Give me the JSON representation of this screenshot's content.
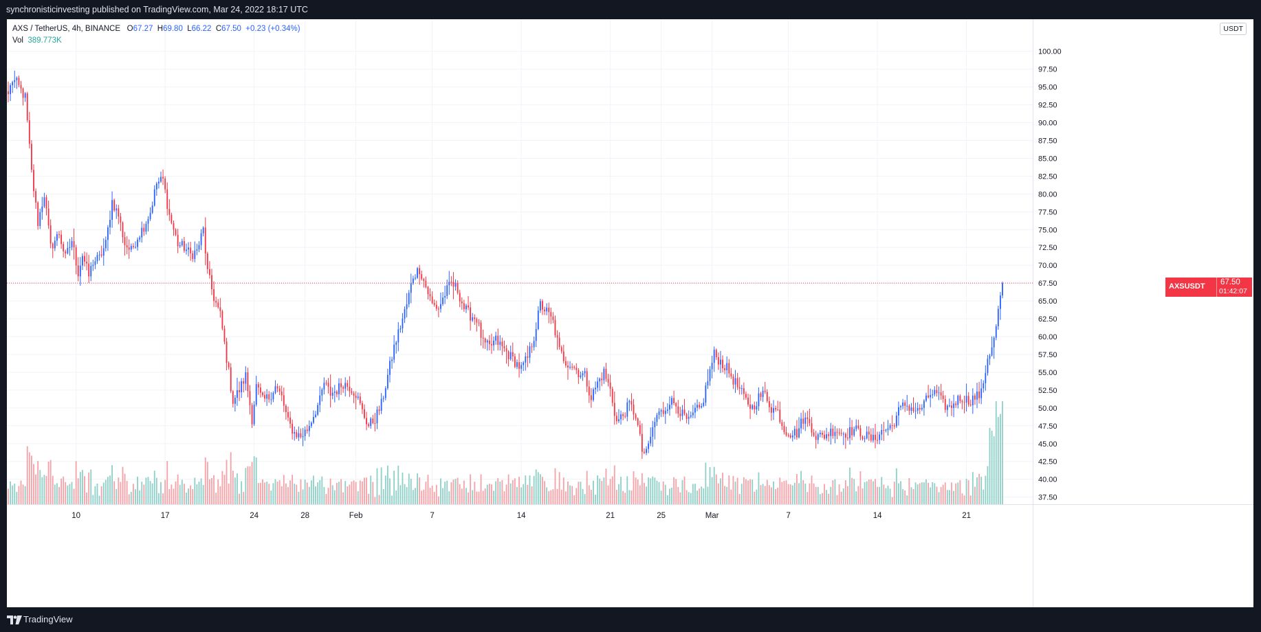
{
  "header": {
    "published_text": "synchronisticinvesting published on TradingView.com, Mar 24, 2022 18:17 UTC"
  },
  "legend": {
    "symbol_line": "AXS / TetherUS, 4h, BINANCE",
    "open_label": "O",
    "open": "67.27",
    "high_label": "H",
    "high": "69.80",
    "low_label": "L",
    "low": "66.22",
    "close_label": "C",
    "close": "67.50",
    "change": "+0.23 (+0.34%)",
    "vol_label": "Vol",
    "vol_value": "389.773K"
  },
  "unit_badge": "USDT",
  "price_tag": {
    "symbol": "AXSUSDT",
    "price": "67.50",
    "countdown": "01:42:07"
  },
  "footer": {
    "brand": "TradingView"
  },
  "colors": {
    "up": "#2962ff",
    "down": "#f23645",
    "vol_up": "#8fd1c8",
    "vol_down": "#f5a3a8",
    "grid": "#f0f3fa",
    "text": "#131722"
  },
  "chart_data": {
    "type": "candlestick",
    "timeframe": "4h",
    "xlabel": "",
    "ylabel": "",
    "ylim": [
      36.5,
      104.5
    ],
    "y_ticks": [
      100,
      97.5,
      95,
      92.5,
      90,
      87.5,
      85,
      82.5,
      80,
      77.5,
      75,
      72.5,
      70,
      67.5,
      65,
      62.5,
      60,
      57.5,
      55,
      52.5,
      50,
      47.5,
      45,
      42.5,
      40,
      37.5
    ],
    "y_tick_labels": [
      "100.00",
      "97.50",
      "95.00",
      "92.50",
      "90.00",
      "87.50",
      "85.00",
      "82.50",
      "80.00",
      "77.50",
      "75.00",
      "72.50",
      "70.00",
      "67.50",
      "65.00",
      "62.50",
      "60.00",
      "57.50",
      "55.00",
      "52.50",
      "50.00",
      "47.50",
      "45.00",
      "42.50",
      "40.00",
      "37.50"
    ],
    "x_ticks": [
      {
        "label": "10",
        "bar": 32
      },
      {
        "label": "17",
        "bar": 74
      },
      {
        "label": "24",
        "bar": 116
      },
      {
        "label": "28",
        "bar": 140
      },
      {
        "label": "Feb",
        "bar": 164
      },
      {
        "label": "7",
        "bar": 200
      },
      {
        "label": "14",
        "bar": 242
      },
      {
        "label": "21",
        "bar": 284
      },
      {
        "label": "25",
        "bar": 308
      },
      {
        "label": "Mar",
        "bar": 332
      },
      {
        "label": "7",
        "bar": 368
      },
      {
        "label": "14",
        "bar": 410
      },
      {
        "label": "21",
        "bar": 452
      }
    ],
    "bar_count": 470,
    "last_price": 67.5,
    "anchors": [
      [
        0,
        94.0
      ],
      [
        2,
        96.0
      ],
      [
        4,
        95.5
      ],
      [
        8,
        93.5
      ],
      [
        11,
        83.0
      ],
      [
        14,
        76.0
      ],
      [
        17,
        80.0
      ],
      [
        20,
        72.5
      ],
      [
        24,
        74.5
      ],
      [
        27,
        71.0
      ],
      [
        30,
        73.5
      ],
      [
        33,
        69.0
      ],
      [
        35,
        71.5
      ],
      [
        38,
        68.5
      ],
      [
        40,
        70.5
      ],
      [
        43,
        71.0
      ],
      [
        46,
        73.0
      ],
      [
        49,
        79.0
      ],
      [
        52,
        77.0
      ],
      [
        55,
        73.0
      ],
      [
        58,
        72.0
      ],
      [
        61,
        74.0
      ],
      [
        64,
        75.5
      ],
      [
        67,
        77.5
      ],
      [
        70,
        81.5
      ],
      [
        73,
        82.0
      ],
      [
        76,
        77.0
      ],
      [
        80,
        73.0
      ],
      [
        83,
        72.5
      ],
      [
        86,
        71.5
      ],
      [
        89,
        72.0
      ],
      [
        92,
        75.0
      ],
      [
        94,
        69.0
      ],
      [
        97,
        65.5
      ],
      [
        100,
        63.0
      ],
      [
        103,
        57.0
      ],
      [
        106,
        51.0
      ],
      [
        109,
        52.5
      ],
      [
        112,
        54.5
      ],
      [
        115,
        48.5
      ],
      [
        117,
        53.0
      ],
      [
        120,
        51.0
      ],
      [
        123,
        51.5
      ],
      [
        126,
        53.0
      ],
      [
        129,
        51.5
      ],
      [
        132,
        48.0
      ],
      [
        135,
        46.5
      ],
      [
        138,
        46.0
      ],
      [
        141,
        47.0
      ],
      [
        144,
        49.0
      ],
      [
        147,
        51.0
      ],
      [
        149,
        53.5
      ],
      [
        152,
        52.0
      ],
      [
        155,
        52.5
      ],
      [
        158,
        53.5
      ],
      [
        161,
        53.0
      ],
      [
        164,
        52.0
      ],
      [
        167,
        49.5
      ],
      [
        170,
        47.5
      ],
      [
        173,
        48.5
      ],
      [
        176,
        50.5
      ],
      [
        179,
        54.5
      ],
      [
        182,
        58.5
      ],
      [
        185,
        61.5
      ],
      [
        188,
        64.5
      ],
      [
        191,
        68.5
      ],
      [
        194,
        69.5
      ],
      [
        197,
        67.0
      ],
      [
        200,
        64.5
      ],
      [
        203,
        64.0
      ],
      [
        206,
        66.0
      ],
      [
        209,
        67.5
      ],
      [
        212,
        66.5
      ],
      [
        215,
        64.0
      ],
      [
        218,
        63.0
      ],
      [
        221,
        62.5
      ],
      [
        224,
        59.0
      ],
      [
        227,
        58.5
      ],
      [
        230,
        59.5
      ],
      [
        233,
        58.5
      ],
      [
        236,
        57.5
      ],
      [
        239,
        56.5
      ],
      [
        242,
        55.5
      ],
      [
        245,
        57.0
      ],
      [
        248,
        60.0
      ],
      [
        251,
        64.5
      ],
      [
        254,
        63.5
      ],
      [
        257,
        62.0
      ],
      [
        260,
        58.0
      ],
      [
        263,
        56.5
      ],
      [
        266,
        56.0
      ],
      [
        269,
        55.0
      ],
      [
        272,
        54.5
      ],
      [
        275,
        51.5
      ],
      [
        278,
        53.5
      ],
      [
        281,
        55.0
      ],
      [
        284,
        52.5
      ],
      [
        287,
        48.0
      ],
      [
        290,
        49.0
      ],
      [
        293,
        50.5
      ],
      [
        296,
        49.0
      ],
      [
        299,
        44.0
      ],
      [
        301,
        43.5
      ],
      [
        303,
        46.0
      ],
      [
        306,
        49.0
      ],
      [
        309,
        49.5
      ],
      [
        312,
        51.0
      ],
      [
        315,
        50.5
      ],
      [
        318,
        49.0
      ],
      [
        321,
        48.0
      ],
      [
        324,
        49.5
      ],
      [
        327,
        50.0
      ],
      [
        330,
        54.0
      ],
      [
        333,
        57.5
      ],
      [
        336,
        56.5
      ],
      [
        339,
        55.5
      ],
      [
        342,
        54.0
      ],
      [
        345,
        52.5
      ],
      [
        348,
        51.0
      ],
      [
        351,
        50.0
      ],
      [
        354,
        51.5
      ],
      [
        357,
        52.0
      ],
      [
        360,
        50.0
      ],
      [
        363,
        49.5
      ],
      [
        366,
        47.0
      ],
      [
        369,
        46.5
      ],
      [
        372,
        46.5
      ],
      [
        375,
        48.5
      ],
      [
        378,
        48.0
      ],
      [
        381,
        46.0
      ],
      [
        384,
        46.0
      ],
      [
        387,
        46.5
      ],
      [
        390,
        47.0
      ],
      [
        393,
        46.5
      ],
      [
        396,
        46.5
      ],
      [
        399,
        47.0
      ],
      [
        402,
        46.5
      ],
      [
        405,
        46.0
      ],
      [
        408,
        45.5
      ],
      [
        411,
        46.5
      ],
      [
        414,
        47.0
      ],
      [
        417,
        47.5
      ],
      [
        420,
        49.5
      ],
      [
        423,
        50.5
      ],
      [
        426,
        50.0
      ],
      [
        429,
        49.5
      ],
      [
        432,
        50.5
      ],
      [
        435,
        52.0
      ],
      [
        438,
        52.0
      ],
      [
        441,
        50.5
      ],
      [
        444,
        50.0
      ],
      [
        447,
        51.0
      ],
      [
        450,
        51.5
      ],
      [
        453,
        51.0
      ],
      [
        456,
        51.5
      ],
      [
        459,
        52.0
      ],
      [
        462,
        57.0
      ],
      [
        465,
        59.5
      ],
      [
        467,
        63.5
      ],
      [
        469,
        67.5
      ]
    ]
  }
}
